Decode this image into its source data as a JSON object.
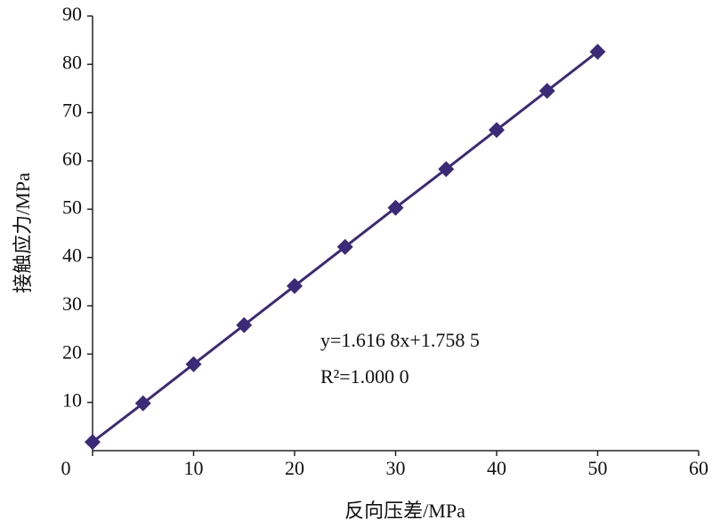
{
  "chart_data": {
    "type": "scatter",
    "x_label": "反向压差/MPa",
    "y_label": "接触应力/MPa",
    "annotations": [
      "y=1.616 8x+1.758 5",
      "R²=1.000 0"
    ],
    "series": [
      {
        "color": "#3b2a78",
        "x": [
          0,
          5,
          10,
          15,
          20,
          25,
          30,
          35,
          40,
          45,
          50
        ],
        "values": [
          1.8,
          9.8,
          17.9,
          26.0,
          34.1,
          42.2,
          50.3,
          58.3,
          66.4,
          74.5,
          82.6
        ]
      }
    ],
    "xlim": [
      0,
      60
    ],
    "xticks": [
      0,
      10,
      20,
      30,
      40,
      50,
      60
    ],
    "ylim": [
      0,
      90
    ],
    "yticks": [
      10,
      20,
      30,
      40,
      50,
      60,
      70,
      80,
      90
    ]
  }
}
